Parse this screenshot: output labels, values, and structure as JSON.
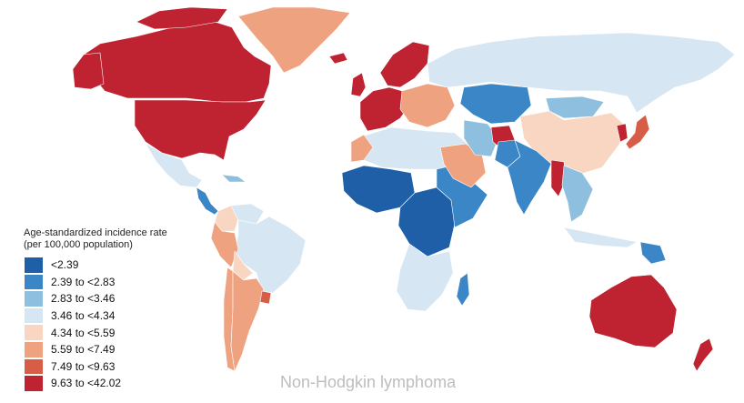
{
  "legend": {
    "title": "Age-standardized incidence rate",
    "subtitle": "(per 100,000 population)",
    "items": [
      {
        "label": "<2.39",
        "color": "#1f5fa8"
      },
      {
        "label": "2.39 to <2.83",
        "color": "#3a86c6"
      },
      {
        "label": "2.83 to <3.46",
        "color": "#8fbfdf"
      },
      {
        "label": "3.46 to <4.34",
        "color": "#d6e6f2"
      },
      {
        "label": "4.34 to <5.59",
        "color": "#f8d6c2"
      },
      {
        "label": "5.59 to <7.49",
        "color": "#efa27f"
      },
      {
        "label": "7.49 to <9.63",
        "color": "#d85d47"
      },
      {
        "label": "9.63 to <42.02",
        "color": "#bf2230"
      }
    ]
  },
  "caption": "Non-Hodgkin lymphoma",
  "regions": [
    {
      "name": "Greenland",
      "bin": 5
    },
    {
      "name": "Canada",
      "bin": 7
    },
    {
      "name": "United States",
      "bin": 7
    },
    {
      "name": "Mexico",
      "bin": 3
    },
    {
      "name": "Central America",
      "bin": 1
    },
    {
      "name": "Caribbean",
      "bin": 2
    },
    {
      "name": "Colombia",
      "bin": 4
    },
    {
      "name": "Venezuela",
      "bin": 3
    },
    {
      "name": "Brazil",
      "bin": 3
    },
    {
      "name": "Peru",
      "bin": 5
    },
    {
      "name": "Bolivia",
      "bin": 4
    },
    {
      "name": "Chile",
      "bin": 5
    },
    {
      "name": "Argentina",
      "bin": 5
    },
    {
      "name": "Uruguay",
      "bin": 6
    },
    {
      "name": "Iceland",
      "bin": 7
    },
    {
      "name": "United Kingdom",
      "bin": 7
    },
    {
      "name": "Scandinavia",
      "bin": 7
    },
    {
      "name": "Western Europe",
      "bin": 7
    },
    {
      "name": "Eastern Europe",
      "bin": 5
    },
    {
      "name": "Russia",
      "bin": 3
    },
    {
      "name": "North Africa",
      "bin": 3
    },
    {
      "name": "Morocco",
      "bin": 5
    },
    {
      "name": "West Africa",
      "bin": 0
    },
    {
      "name": "Central Africa",
      "bin": 0
    },
    {
      "name": "East Africa",
      "bin": 1
    },
    {
      "name": "Southern Africa",
      "bin": 3
    },
    {
      "name": "Madagascar",
      "bin": 1
    },
    {
      "name": "Saudi Arabia",
      "bin": 5
    },
    {
      "name": "Iran",
      "bin": 2
    },
    {
      "name": "Central Asia",
      "bin": 1
    },
    {
      "name": "Afghanistan",
      "bin": 7
    },
    {
      "name": "Pakistan",
      "bin": 1
    },
    {
      "name": "India",
      "bin": 1
    },
    {
      "name": "Myanmar",
      "bin": 7
    },
    {
      "name": "Mongolia",
      "bin": 2
    },
    {
      "name": "China",
      "bin": 4
    },
    {
      "name": "Korea",
      "bin": 7
    },
    {
      "name": "Japan",
      "bin": 6
    },
    {
      "name": "Southeast Asia",
      "bin": 2
    },
    {
      "name": "Indonesia",
      "bin": 3
    },
    {
      "name": "Papua New Guinea",
      "bin": 1
    },
    {
      "name": "Australia",
      "bin": 7
    },
    {
      "name": "New Zealand",
      "bin": 7
    }
  ]
}
